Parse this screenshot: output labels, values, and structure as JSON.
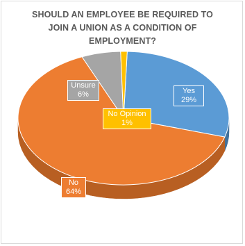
{
  "chart_data": {
    "type": "pie",
    "title_lines": [
      "SHOULD AN EMPLOYEE BE REQUIRED TO",
      "JOIN A UNION AS A CONDITION OF",
      "EMPLOYMENT?"
    ],
    "slices": [
      {
        "label": "Yes",
        "value": 29,
        "value_text": "29%",
        "color": "#5b9bd5",
        "side": "#41719c"
      },
      {
        "label": "No",
        "value": 64,
        "value_text": "64%",
        "color": "#ed7d31",
        "side": "#b85f22"
      },
      {
        "label": "Unsure",
        "value": 6,
        "value_text": "6%",
        "color": "#a5a5a5",
        "side": "#7b7b7b"
      },
      {
        "label": "No Opinion",
        "value": 1,
        "value_text": "1%",
        "color": "#ffc000",
        "side": "#bf9000"
      }
    ]
  }
}
